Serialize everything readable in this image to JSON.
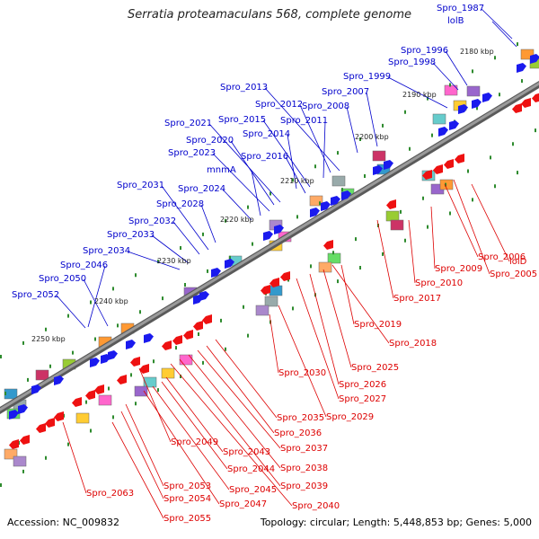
{
  "title": "Serratia proteamaculans 568, complete genome",
  "footer": {
    "accession": "Accession: NC_009832",
    "summary": "Topology: circular; Length: 5,448,853 bp; Genes: 5,000"
  },
  "colors": {
    "forward_label": "#0000cc",
    "reverse_label": "#dd0000",
    "forward_arrow": "#1a1aee",
    "reverse_arrow": "#ee1111",
    "backbone": "#808080",
    "tick": "#2e8b2e"
  },
  "kbp_markers": [
    "2180 kbp",
    "2190 kbp",
    "2200 kbp",
    "2210 kbp",
    "2220 kbp",
    "2230 kbp",
    "2240 kbp",
    "2250 kbp"
  ],
  "forward_genes": [
    "Spro_1987",
    "lolB",
    "Spro_1996",
    "Spro_1998",
    "Spro_1999",
    "Spro_2007",
    "Spro_2008",
    "Spro_2013",
    "Spro_2012",
    "Spro_2011",
    "Spro_2015",
    "Spro_2021",
    "Spro_2014",
    "Spro_2020",
    "Spro_2023",
    "Spro_2016",
    "mnmA",
    "Spro_2031",
    "Spro_2024",
    "Spro_2028",
    "Spro_2032",
    "Spro_2033",
    "Spro_2034",
    "Spro_2046",
    "Spro_2050",
    "Spro_2052"
  ],
  "reverse_genes": [
    "lolD",
    "Spro_2006",
    "Spro_2005",
    "Spro_2009",
    "Spro_2010",
    "Spro_2017",
    "Spro_2019",
    "Spro_2018",
    "Spro_2025",
    "Spro_2026",
    "Spro_2027",
    "Spro_2030",
    "Spro_2029",
    "Spro_2035",
    "Spro_2036",
    "Spro_2037",
    "Spro_2038",
    "Spro_2039",
    "Spro_2040",
    "Spro_2043",
    "Spro_2049",
    "Spro_2044",
    "Spro_2045",
    "Spro_2047",
    "Spro_2053",
    "Spro_2054",
    "Spro_2055",
    "Spro_2063"
  ]
}
